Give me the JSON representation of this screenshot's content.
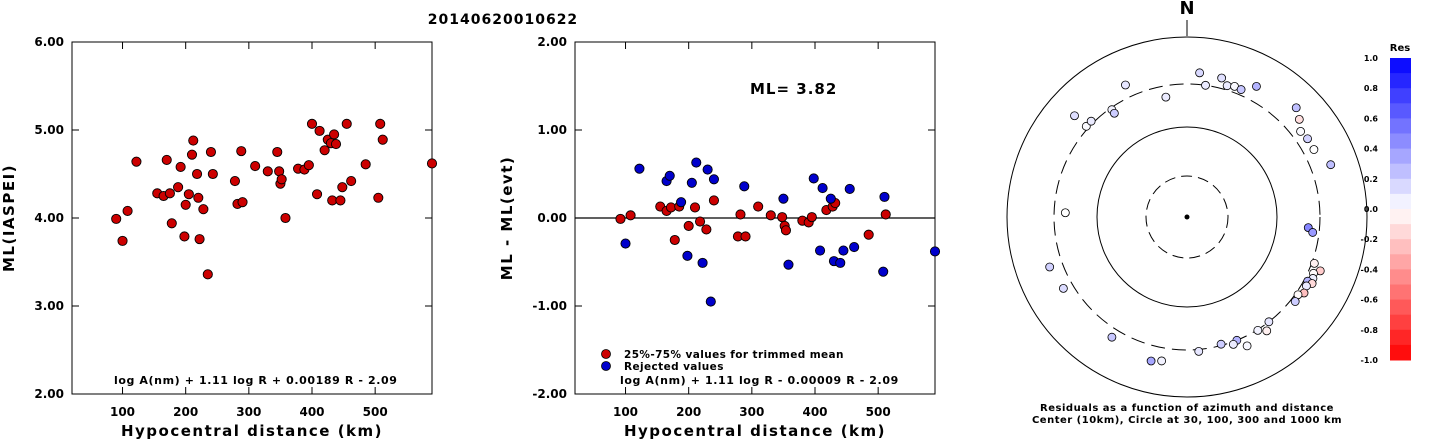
{
  "title": "20140620010622",
  "chart_data": [
    {
      "type": "scatter",
      "ylabel": "ML(IASPEI)",
      "xlabel": "Hypocentral distance (km)",
      "xlim": [
        20,
        590
      ],
      "ylim": [
        2.0,
        6.0
      ],
      "xticks": [
        "100",
        "200",
        "300",
        "400",
        "500"
      ],
      "yticks": [
        "2.00",
        "3.00",
        "4.00",
        "5.00",
        "6.00"
      ],
      "formula": "log A(nm) + 1.11 log R + 0.00189 R - 2.09",
      "point_color": "#cc0000",
      "points": [
        [
          90,
          3.99
        ],
        [
          100,
          3.74
        ],
        [
          108,
          4.08
        ],
        [
          122,
          4.64
        ],
        [
          155,
          4.28
        ],
        [
          165,
          4.25
        ],
        [
          170,
          4.66
        ],
        [
          175,
          4.28
        ],
        [
          178,
          3.94
        ],
        [
          188,
          4.35
        ],
        [
          192,
          4.58
        ],
        [
          198,
          3.79
        ],
        [
          200,
          4.15
        ],
        [
          205,
          4.27
        ],
        [
          210,
          4.72
        ],
        [
          212,
          4.88
        ],
        [
          218,
          4.5
        ],
        [
          220,
          4.23
        ],
        [
          222,
          3.76
        ],
        [
          228,
          4.1
        ],
        [
          235,
          3.36
        ],
        [
          240,
          4.75
        ],
        [
          243,
          4.5
        ],
        [
          278,
          4.42
        ],
        [
          282,
          4.16
        ],
        [
          288,
          4.76
        ],
        [
          290,
          4.18
        ],
        [
          310,
          4.59
        ],
        [
          330,
          4.53
        ],
        [
          345,
          4.75
        ],
        [
          348,
          4.53
        ],
        [
          350,
          4.39
        ],
        [
          352,
          4.44
        ],
        [
          358,
          4.0
        ],
        [
          378,
          4.56
        ],
        [
          388,
          4.55
        ],
        [
          395,
          4.6
        ],
        [
          400,
          5.07
        ],
        [
          408,
          4.27
        ],
        [
          412,
          4.99
        ],
        [
          420,
          4.77
        ],
        [
          425,
          4.89
        ],
        [
          430,
          4.85
        ],
        [
          432,
          4.2
        ],
        [
          435,
          4.95
        ],
        [
          438,
          4.84
        ],
        [
          445,
          4.2
        ],
        [
          448,
          4.35
        ],
        [
          455,
          5.07
        ],
        [
          462,
          4.42
        ],
        [
          485,
          4.61
        ],
        [
          505,
          4.23
        ],
        [
          508,
          5.07
        ],
        [
          512,
          4.89
        ],
        [
          590,
          4.62
        ]
      ]
    },
    {
      "type": "scatter",
      "ylabel": "ML - ML(evt)",
      "xlabel": "Hypocentral distance (km)",
      "xlim": [
        20,
        590
      ],
      "ylim": [
        -2.0,
        2.0
      ],
      "xticks": [
        "100",
        "200",
        "300",
        "400",
        "500"
      ],
      "yticks": [
        "-2.00",
        "-1.00",
        "0.00",
        "1.00",
        "2.00"
      ],
      "annotation": "ML= 3.82",
      "formula": "log A(nm) + 1.11 log R - 0.00009 R - 2.09",
      "legend": [
        {
          "label": "25%-75% values for trimmed mean",
          "color": "#cc0000"
        },
        {
          "label": "Rejected values",
          "color": "#0000cc"
        }
      ],
      "series": [
        {
          "name": "25%-75% values for trimmed mean",
          "color": "#cc0000",
          "points": [
            [
              92,
              -0.01
            ],
            [
              108,
              0.03
            ],
            [
              155,
              0.13
            ],
            [
              165,
              0.08
            ],
            [
              172,
              0.12
            ],
            [
              178,
              -0.25
            ],
            [
              185,
              0.13
            ],
            [
              200,
              -0.09
            ],
            [
              210,
              0.12
            ],
            [
              218,
              -0.04
            ],
            [
              228,
              -0.13
            ],
            [
              240,
              0.2
            ],
            [
              278,
              -0.21
            ],
            [
              282,
              0.04
            ],
            [
              290,
              -0.21
            ],
            [
              310,
              0.13
            ],
            [
              330,
              0.03
            ],
            [
              348,
              0.01
            ],
            [
              352,
              -0.09
            ],
            [
              354,
              -0.14
            ],
            [
              380,
              -0.03
            ],
            [
              390,
              -0.05
            ],
            [
              395,
              0.01
            ],
            [
              418,
              0.09
            ],
            [
              428,
              0.13
            ],
            [
              432,
              0.17
            ],
            [
              485,
              -0.19
            ],
            [
              512,
              0.04
            ]
          ]
        },
        {
          "name": "Rejected values",
          "color": "#0000cc",
          "points": [
            [
              100,
              -0.29
            ],
            [
              122,
              0.56
            ],
            [
              165,
              0.42
            ],
            [
              170,
              0.48
            ],
            [
              188,
              0.18
            ],
            [
              198,
              -0.43
            ],
            [
              205,
              0.4
            ],
            [
              212,
              0.63
            ],
            [
              222,
              -0.51
            ],
            [
              230,
              0.55
            ],
            [
              235,
              -0.95
            ],
            [
              240,
              0.44
            ],
            [
              288,
              0.36
            ],
            [
              350,
              0.22
            ],
            [
              358,
              -0.53
            ],
            [
              398,
              0.45
            ],
            [
              408,
              -0.37
            ],
            [
              412,
              0.34
            ],
            [
              425,
              0.22
            ],
            [
              430,
              -0.49
            ],
            [
              440,
              -0.51
            ],
            [
              445,
              -0.37
            ],
            [
              455,
              0.33
            ],
            [
              462,
              -0.33
            ],
            [
              508,
              -0.61
            ],
            [
              510,
              0.24
            ],
            [
              590,
              -0.38
            ]
          ]
        }
      ]
    },
    {
      "type": "scatter",
      "projection": "polar",
      "north_label": "N",
      "caption_lines": [
        "Residuals as a function of azimuth and distance",
        "Center (10km), Circle at 30, 100, 300 and 1000 km"
      ],
      "colorbar": {
        "title": "Res",
        "ticks": [
          "1.0",
          "0.8",
          "0.6",
          "0.4",
          "0.2",
          "0.0",
          "-0.2",
          "-0.4",
          "-0.6",
          "-0.8",
          "-1.0"
        ],
        "range": [
          -1.0,
          1.0
        ],
        "positive_color": "#0000ff",
        "negative_color": "#ff0000"
      },
      "rings_km": [
        30,
        100,
        300,
        1000
      ],
      "points_azimuth_distance_residual": [
        [
          -48,
          320,
          0.02
        ],
        [
          -48,
          480,
          0.13
        ],
        [
          -35,
          285,
          0.05
        ],
        [
          -25,
          415,
          0.1
        ],
        [
          -10,
          225,
          0.08
        ],
        [
          5,
          405,
          0.15
        ],
        [
          8,
          300,
          0.08
        ],
        [
          14,
          390,
          0.12
        ],
        [
          17,
          335,
          0.08
        ],
        [
          20,
          350,
          0.02
        ],
        [
          23,
          345,
          0.22
        ],
        [
          28,
          440,
          0.3
        ],
        [
          45,
          520,
          0.25
        ],
        [
          49,
          450,
          -0.13
        ],
        [
          53,
          380,
          0.02
        ],
        [
          57,
          395,
          0.18
        ],
        [
          62,
          395,
          0.0
        ],
        [
          70,
          500,
          0.25
        ],
        [
          95,
          225,
          0.48
        ],
        [
          97,
          255,
          0.4
        ],
        [
          110,
          320,
          -0.06
        ],
        [
          112,
          395,
          -0.2
        ],
        [
          114,
          345,
          -0.02
        ],
        [
          116,
          360,
          0.06
        ],
        [
          118,
          330,
          0.3
        ],
        [
          118,
          375,
          -0.15
        ],
        [
          120,
          340,
          0.08
        ],
        [
          123,
          355,
          -0.25
        ],
        [
          125,
          320,
          -0.02
        ],
        [
          128,
          335,
          0.2
        ],
        [
          142,
          300,
          0.1
        ],
        [
          145,
          350,
          -0.06
        ],
        [
          148,
          305,
          0.05
        ],
        [
          155,
          380,
          0.03
        ],
        [
          158,
          300,
          0.3
        ],
        [
          160,
          320,
          0.08
        ],
        [
          165,
          290,
          0.2
        ],
        [
          175,
          315,
          0.1
        ],
        [
          190,
          420,
          0.05
        ],
        [
          194,
          445,
          0.35
        ],
        [
          212,
          375,
          0.22
        ],
        [
          240,
          385,
          0.14
        ],
        [
          250,
          420,
          0.18
        ],
        [
          272,
          225,
          0.0
        ],
        [
          315,
          320,
          0.08
        ],
        [
          325,
          255,
          0.2
        ]
      ]
    }
  ]
}
